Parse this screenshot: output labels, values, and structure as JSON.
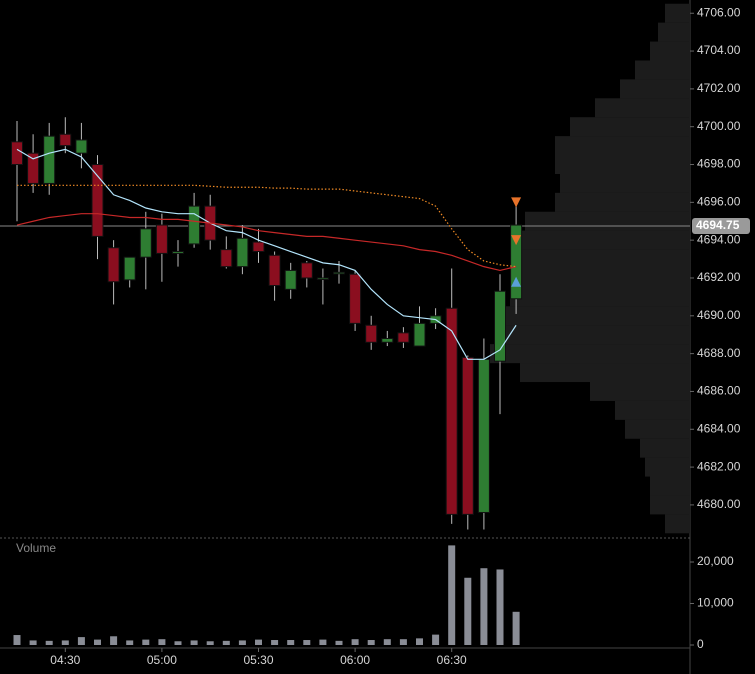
{
  "chart_data": [
    {
      "type": "candlestick",
      "categories": [
        null,
        null,
        null,
        "04:30",
        null,
        null,
        null,
        null,
        null,
        "05:00",
        null,
        null,
        null,
        null,
        null,
        "05:30",
        null,
        null,
        null,
        null,
        null,
        "06:00",
        null,
        null,
        null,
        null,
        null,
        "06:30",
        null,
        null,
        null,
        null
      ],
      "open": [
        4699.2,
        4698.6,
        4697.0,
        4699.6,
        4698.6,
        4698.0,
        4693.6,
        4691.9,
        4693.1,
        4694.8,
        4693.3,
        4693.8,
        4695.8,
        4693.5,
        4692.6,
        4693.9,
        4693.2,
        4691.4,
        4692.8,
        4692.0,
        4692.3,
        4692.2,
        4689.5,
        4688.6,
        4689.1,
        4688.4,
        4689.6,
        4690.4,
        4687.8,
        4679.6,
        4687.6,
        4690.9
      ],
      "high": [
        4700.3,
        4699.6,
        4700.2,
        4700.5,
        4700.2,
        4698.5,
        4694.0,
        4693.0,
        4695.5,
        4695.4,
        4694.0,
        4696.5,
        4696.4,
        4694.2,
        4694.8,
        4694.6,
        4693.4,
        4692.8,
        4692.9,
        4692.5,
        4692.9,
        4692.4,
        4690.0,
        4689.2,
        4689.4,
        4690.5,
        4690.4,
        4692.5,
        4687.9,
        4688.8,
        4692.2,
        4696.0
      ],
      "low": [
        4695.0,
        4696.5,
        4696.4,
        4698.6,
        4697.8,
        4693.0,
        4690.6,
        4691.5,
        4691.4,
        4691.8,
        4692.6,
        4693.6,
        4693.5,
        4692.5,
        4692.2,
        4692.8,
        4690.8,
        4690.9,
        4691.5,
        4690.6,
        4691.7,
        4689.2,
        4688.2,
        4688.4,
        4688.3,
        4688.4,
        4689.3,
        4679.0,
        4678.7,
        4678.7,
        4684.8,
        4690.1
      ],
      "close": [
        4698.0,
        4697.0,
        4699.5,
        4699.0,
        4699.3,
        4694.2,
        4691.8,
        4693.1,
        4694.6,
        4693.3,
        4693.4,
        4695.8,
        4694.0,
        4692.6,
        4694.1,
        4693.4,
        4691.6,
        4692.4,
        4692.0,
        4692.0,
        4692.3,
        4689.6,
        4688.6,
        4688.8,
        4688.6,
        4689.6,
        4690.0,
        4679.5,
        4679.5,
        4687.7,
        4691.3,
        4694.8
      ],
      "up_color": "#2e7d32",
      "down_color": "#8b0e1f",
      "lines": [
        {
          "color": "#b3e5fc",
          "style": "solid",
          "values": [
            4698.8,
            4698.3,
            4698.6,
            4698.8,
            4698.4,
            4697.4,
            4696.4,
            4696.1,
            4695.7,
            4695.5,
            4695.4,
            4695.4,
            4694.9,
            4694.5,
            4694.4,
            4694.0,
            4693.7,
            4693.4,
            4693.1,
            4692.8,
            4692.7,
            4692.4,
            4691.4,
            4690.6,
            4690.0,
            4689.9,
            4689.8,
            4689.2,
            4687.7,
            4687.7,
            4688.2,
            4689.5
          ]
        },
        {
          "color": "#c62828",
          "style": "solid",
          "values": [
            4694.8,
            4695.0,
            4695.2,
            4695.3,
            4695.4,
            4695.4,
            4695.3,
            4695.2,
            4695.2,
            4695.1,
            4695.1,
            4695.0,
            4694.9,
            4694.8,
            4694.7,
            4694.5,
            4694.4,
            4694.3,
            4694.2,
            4694.2,
            4694.1,
            4694.0,
            4693.9,
            4693.8,
            4693.7,
            4693.5,
            4693.4,
            4693.2,
            4692.9,
            4692.6,
            4692.4,
            4692.6
          ]
        },
        {
          "color": "#f08a24",
          "style": "dotted",
          "values": [
            4696.9,
            4696.9,
            4696.9,
            4696.9,
            4696.9,
            4696.9,
            4696.9,
            4696.9,
            4696.9,
            4696.9,
            4696.9,
            4696.9,
            4696.85,
            4696.8,
            4696.8,
            4696.8,
            4696.75,
            4696.75,
            4696.7,
            4696.7,
            4696.7,
            4696.6,
            4696.5,
            4696.4,
            4696.3,
            4696.2,
            4695.8,
            4694.6,
            4693.5,
            4692.9,
            4692.7,
            4692.6
          ]
        }
      ],
      "markers": [
        {
          "index": 31,
          "value": 4696.0,
          "shape": "down",
          "color": "#e8732a"
        },
        {
          "index": 31,
          "value": 4694.0,
          "shape": "down",
          "color": "#e8732a"
        },
        {
          "index": 31,
          "value": 4691.8,
          "shape": "up",
          "color": "#5aa0d8"
        }
      ],
      "last_price": 4694.75,
      "volume_profile": {
        "levels": [
          4706,
          4705,
          4704,
          4703,
          4702,
          4701,
          4700,
          4699,
          4698,
          4697,
          4696,
          4695,
          4694,
          4693,
          4692,
          4691,
          4690,
          4689,
          4688,
          4687,
          4686,
          4685,
          4684,
          4683,
          4682,
          4681,
          4680,
          4679
        ],
        "values": [
          25,
          32,
          40,
          55,
          70,
          95,
          120,
          135,
          135,
          130,
          135,
          165,
          170,
          175,
          180,
          180,
          190,
          195,
          200,
          170,
          100,
          75,
          65,
          50,
          45,
          40,
          40,
          25
        ],
        "color": "#1c1c1c"
      },
      "ylim": [
        4678.25,
        4706.7
      ],
      "yticks": [
        {
          "value": 4680,
          "label": "4680.00"
        },
        {
          "value": 4682,
          "label": "4682.00"
        },
        {
          "value": 4684,
          "label": "4684.00"
        },
        {
          "value": 4686,
          "label": "4686.00"
        },
        {
          "value": 4688,
          "label": "4688.00"
        },
        {
          "value": 4690,
          "label": "4690.00"
        },
        {
          "value": 4692,
          "label": "4692.00"
        },
        {
          "value": 4694,
          "label": "4694.00"
        },
        {
          "value": 4696,
          "label": "4696.00"
        },
        {
          "value": 4698,
          "label": "4698.00"
        },
        {
          "value": 4700,
          "label": "4700.00"
        },
        {
          "value": 4702,
          "label": "4702.00"
        },
        {
          "value": 4704,
          "label": "4704.00"
        },
        {
          "value": 4706,
          "label": "4706.00"
        }
      ]
    },
    {
      "type": "bar",
      "title": "Volume",
      "color": "#8a8d96",
      "values": [
        2400,
        1100,
        1000,
        1100,
        1900,
        1300,
        2100,
        1100,
        1300,
        1400,
        900,
        1100,
        900,
        1000,
        1100,
        1300,
        1200,
        1200,
        1200,
        1300,
        1000,
        1400,
        1200,
        1400,
        1400,
        1600,
        2500,
        24000,
        16200,
        18500,
        18200,
        8000
      ],
      "ylim": [
        0,
        25300
      ],
      "yticks": [
        0,
        {
          "value": 10000,
          "label": "10,000"
        },
        {
          "value": 20000,
          "label": "20,000"
        }
      ]
    }
  ]
}
